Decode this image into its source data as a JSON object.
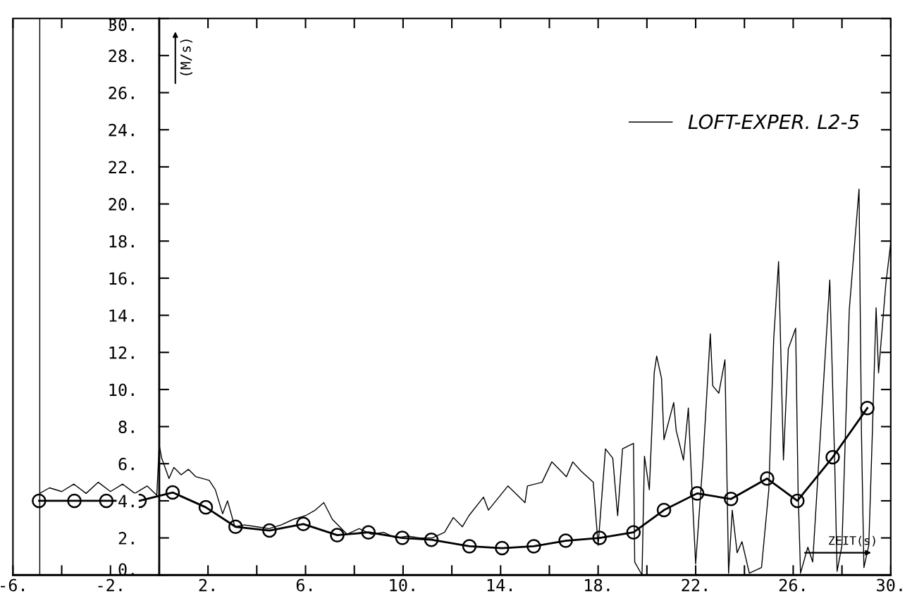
{
  "chart_data": {
    "type": "line",
    "xlabel": "ZEIT(s)",
    "ylabel": "(M/s)",
    "xlim": [
      -6,
      30
    ],
    "ylim": [
      0,
      30
    ],
    "xticks": [
      {
        "value": -6,
        "label": "-6."
      },
      {
        "value": -4,
        "label": null
      },
      {
        "value": -2,
        "label": "-2."
      },
      {
        "value": 0,
        "label": null
      },
      {
        "value": 2,
        "label": "2."
      },
      {
        "value": 4,
        "label": null
      },
      {
        "value": 6,
        "label": "6."
      },
      {
        "value": 8,
        "label": null
      },
      {
        "value": 10,
        "label": "10."
      },
      {
        "value": 12,
        "label": null
      },
      {
        "value": 14,
        "label": "14."
      },
      {
        "value": 16,
        "label": null
      },
      {
        "value": 18,
        "label": "18."
      },
      {
        "value": 20,
        "label": null
      },
      {
        "value": 22,
        "label": "22."
      },
      {
        "value": 24,
        "label": null
      },
      {
        "value": 26,
        "label": "26."
      },
      {
        "value": 28,
        "label": null
      },
      {
        "value": 30,
        "label": "30."
      }
    ],
    "yticks": [
      {
        "value": 0,
        "label": "0."
      },
      {
        "value": 2,
        "label": "2."
      },
      {
        "value": 4,
        "label": "4."
      },
      {
        "value": 6,
        "label": "6."
      },
      {
        "value": 8,
        "label": "8."
      },
      {
        "value": 10,
        "label": "10."
      },
      {
        "value": 12,
        "label": "12."
      },
      {
        "value": 14,
        "label": "14."
      },
      {
        "value": 16,
        "label": "16."
      },
      {
        "value": 18,
        "label": "18."
      },
      {
        "value": 20,
        "label": "20."
      },
      {
        "value": 22,
        "label": "22."
      },
      {
        "value": 24,
        "label": "24."
      },
      {
        "value": 26,
        "label": "26."
      },
      {
        "value": 28,
        "label": "28."
      },
      {
        "value": 30,
        "label": "30."
      }
    ],
    "grid": false,
    "legend": "top right",
    "ref_lines": [
      {
        "axis": "x",
        "value": -4.9,
        "color": "#000000"
      }
    ],
    "series": [
      {
        "name": "LOFT-EXPER. L2-5",
        "color": "#000000",
        "marker": "none",
        "x": [
          -4.9,
          -4.5,
          -4.0,
          -3.5,
          -3.0,
          -2.5,
          -2.0,
          -1.5,
          -1.0,
          -0.5,
          -0.1,
          0.0,
          0.1,
          0.4,
          0.6,
          0.9,
          1.2,
          1.5,
          2.05,
          2.3,
          2.6,
          2.8,
          3.1,
          3.5,
          4.0,
          4.5,
          5.0,
          5.5,
          6.0,
          6.4,
          6.75,
          7.1,
          7.4,
          7.7,
          8.2,
          8.7,
          9.2,
          9.7,
          10.2,
          10.7,
          11.2,
          11.7,
          12.06,
          12.43,
          12.7,
          13.3,
          13.5,
          14.3,
          15.0,
          15.1,
          15.7,
          16.1,
          16.7,
          16.96,
          17.3,
          17.8,
          18.0,
          18.3,
          18.6,
          18.8,
          19.0,
          19.45,
          19.5,
          19.8,
          19.9,
          20.1,
          20.3,
          20.4,
          20.6,
          20.7,
          21.1,
          21.2,
          21.5,
          21.7,
          21.85,
          22.0,
          22.3,
          22.6,
          22.7,
          22.95,
          23.2,
          23.35,
          23.5,
          23.7,
          23.9,
          24.2,
          24.7,
          25.0,
          25.2,
          25.4,
          25.45,
          25.6,
          25.8,
          26.1,
          26.2,
          26.3,
          26.6,
          26.8,
          27.2,
          27.5,
          27.7,
          27.8,
          28.0,
          28.3,
          28.7,
          28.8,
          28.9,
          29.1,
          29.25,
          29.4,
          29.5,
          29.8,
          30.0
        ],
        "values": [
          4.4,
          4.7,
          4.5,
          4.9,
          4.4,
          5.0,
          4.5,
          4.9,
          4.4,
          4.8,
          4.3,
          7.0,
          6.3,
          5.2,
          5.8,
          5.4,
          5.7,
          5.3,
          5.1,
          4.6,
          3.3,
          4.0,
          2.6,
          2.7,
          2.6,
          2.5,
          2.7,
          3.0,
          3.2,
          3.5,
          3.9,
          3.0,
          2.6,
          2.2,
          2.5,
          2.2,
          2.3,
          2.0,
          2.1,
          2.0,
          2.0,
          2.3,
          3.1,
          2.6,
          3.2,
          4.2,
          3.5,
          4.8,
          3.9,
          4.8,
          5.0,
          6.1,
          5.3,
          6.1,
          5.6,
          5.0,
          1.6,
          6.8,
          6.3,
          3.2,
          6.8,
          7.1,
          0.7,
          0.0,
          6.4,
          4.6,
          10.9,
          11.8,
          10.6,
          7.3,
          9.3,
          7.8,
          6.2,
          9.0,
          4.6,
          0.6,
          6.2,
          13.0,
          10.2,
          9.8,
          11.6,
          0.1,
          3.5,
          1.2,
          1.8,
          0.1,
          0.4,
          4.6,
          12.7,
          16.9,
          14.3,
          6.2,
          12.2,
          13.3,
          4.6,
          0.1,
          1.5,
          0.7,
          9.4,
          15.9,
          6.2,
          0.2,
          1.6,
          14.3,
          20.8,
          7.6,
          0.4,
          1.6,
          7.8,
          14.4,
          10.9,
          15.7,
          17.9
        ]
      },
      {
        "color": "#000000",
        "marker": "circle",
        "x": [
          -4.93,
          -3.48,
          -2.17,
          -0.81,
          0.55,
          1.91,
          3.13,
          4.52,
          5.91,
          7.3,
          8.58,
          9.97,
          11.16,
          12.72,
          14.06,
          15.36,
          16.67,
          18.06,
          19.45,
          20.7,
          22.06,
          23.45,
          24.93,
          26.17,
          27.62,
          29.04
        ],
        "values": [
          4.0,
          4.0,
          4.0,
          4.0,
          4.45,
          3.65,
          2.6,
          2.4,
          2.75,
          2.15,
          2.3,
          2.0,
          1.9,
          1.55,
          1.45,
          1.55,
          1.85,
          2.0,
          2.3,
          3.5,
          4.4,
          4.1,
          5.2,
          4.0,
          6.35,
          9.0
        ]
      }
    ]
  }
}
